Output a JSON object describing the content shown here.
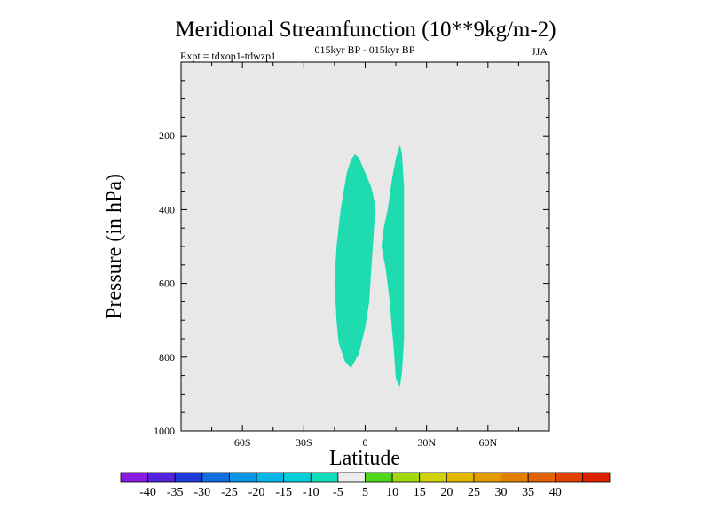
{
  "chart_data": {
    "type": "heatmap",
    "title": "Meridional Streamfunction (10**9kg/m-2)",
    "subtitle": "015kyr BP - 015kyr BP",
    "experiment_label": "Expt = tdxop1-tdwzp1",
    "season_label": "JJA",
    "xlabel": "Latitude",
    "ylabel": "Pressure (in hPa)",
    "xlim": [
      -90,
      90
    ],
    "ylim": [
      1000,
      0
    ],
    "x_ticks": [
      -60,
      -30,
      0,
      30,
      60
    ],
    "x_tick_labels": [
      "60S",
      "30S",
      "0",
      "30N",
      "60N"
    ],
    "y_ticks": [
      200,
      400,
      600,
      800,
      1000
    ],
    "y_tick_labels": [
      "200",
      "400",
      "600",
      "800",
      "1000"
    ],
    "background_color": "#e8e8e8",
    "contour_regions": [
      {
        "name": "cell-south",
        "level_range": [
          -10,
          -5
        ],
        "color": "#1fdcb0",
        "outline": [
          [
            -5,
            250
          ],
          [
            -3,
            260
          ],
          [
            0,
            300
          ],
          [
            3,
            340
          ],
          [
            5,
            390
          ],
          [
            4,
            480
          ],
          [
            3,
            560
          ],
          [
            2,
            650
          ],
          [
            0,
            720
          ],
          [
            -3,
            790
          ],
          [
            -7,
            830
          ],
          [
            -10,
            810
          ],
          [
            -13,
            760
          ],
          [
            -14,
            700
          ],
          [
            -15,
            600
          ],
          [
            -14,
            500
          ],
          [
            -12,
            400
          ],
          [
            -9,
            300
          ],
          [
            -7,
            265
          ]
        ]
      },
      {
        "name": "cell-north",
        "level_range": [
          -10,
          -5
        ],
        "color": "#1fdcb0",
        "outline": [
          [
            17,
            225
          ],
          [
            18,
            250
          ],
          [
            19,
            340
          ],
          [
            19,
            450
          ],
          [
            19,
            560
          ],
          [
            19,
            650
          ],
          [
            19,
            750
          ],
          [
            18,
            840
          ],
          [
            17,
            880
          ],
          [
            15,
            860
          ],
          [
            14,
            780
          ],
          [
            13,
            720
          ],
          [
            12,
            650
          ],
          [
            10,
            560
          ],
          [
            8,
            500
          ],
          [
            9,
            450
          ],
          [
            11,
            400
          ],
          [
            13,
            320
          ],
          [
            15,
            260
          ]
        ]
      }
    ],
    "colorbar": {
      "colors": [
        "#8a1be0",
        "#5222dd",
        "#1d3bd9",
        "#0f6ee0",
        "#0a96e6",
        "#07b5e6",
        "#05cfdb",
        "#0fdcb8",
        "#ececec",
        "#4fd81a",
        "#a2d90e",
        "#cfd20a",
        "#e0b800",
        "#e39b00",
        "#e38000",
        "#e36200",
        "#e04200",
        "#dd2000"
      ],
      "labels": [
        "-40",
        "-35",
        "-30",
        "-25",
        "-20",
        "-15",
        "-10",
        "-5",
        "5",
        "10",
        "15",
        "20",
        "25",
        "30",
        "35",
        "40"
      ]
    }
  }
}
